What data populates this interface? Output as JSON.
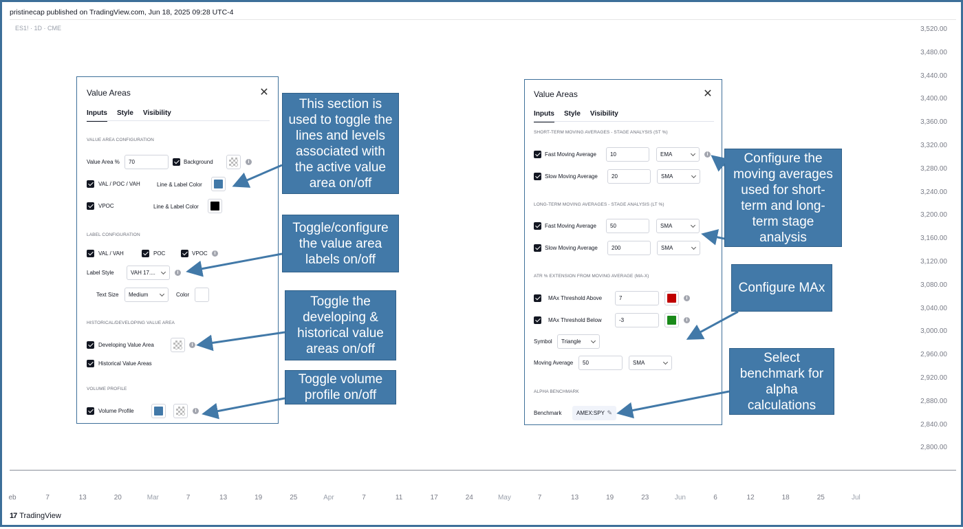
{
  "header": {
    "published": "pristinecap published on TradingView.com, Jun 18, 2025 09:28 UTC-4",
    "symbol": "ES1! · 1D · CME"
  },
  "price_axis": [
    "3,520.00",
    "3,480.00",
    "3,440.00",
    "3,400.00",
    "3,360.00",
    "3,320.00",
    "3,280.00",
    "3,240.00",
    "3,200.00",
    "3,160.00",
    "3,120.00",
    "3,080.00",
    "3,040.00",
    "3,000.00",
    "2,960.00",
    "2,920.00",
    "2,880.00",
    "2,840.00",
    "2,800.00"
  ],
  "date_axis": [
    {
      "label": "eb",
      "month": false
    },
    {
      "label": "7",
      "month": false
    },
    {
      "label": "13",
      "month": false
    },
    {
      "label": "20",
      "month": false
    },
    {
      "label": "Mar",
      "month": true
    },
    {
      "label": "7",
      "month": false
    },
    {
      "label": "13",
      "month": false
    },
    {
      "label": "19",
      "month": false
    },
    {
      "label": "25",
      "month": false
    },
    {
      "label": "Apr",
      "month": true
    },
    {
      "label": "7",
      "month": false
    },
    {
      "label": "11",
      "month": false
    },
    {
      "label": "17",
      "month": false
    },
    {
      "label": "24",
      "month": false
    },
    {
      "label": "May",
      "month": true
    },
    {
      "label": "7",
      "month": false
    },
    {
      "label": "13",
      "month": false
    },
    {
      "label": "19",
      "month": false
    },
    {
      "label": "23",
      "month": false
    },
    {
      "label": "Jun",
      "month": true
    },
    {
      "label": "6",
      "month": false
    },
    {
      "label": "12",
      "month": false
    },
    {
      "label": "18",
      "month": false
    },
    {
      "label": "25",
      "month": false
    },
    {
      "label": "Jul",
      "month": true
    }
  ],
  "footer": {
    "logo": "TradingView",
    "logo_mark": "17"
  },
  "left_dialog": {
    "title": "Value Areas",
    "tabs": [
      "Inputs",
      "Style",
      "Visibility"
    ],
    "sec_value_area": "Value Area Configuration",
    "value_area_label": "Value Area %",
    "value_area_value": "70",
    "background_label": "Background",
    "val_poc_vah_label": "VAL / POC / VAH",
    "line_label_color_1": "Line & Label Color",
    "vpoc_label": "VPOC",
    "line_label_color_2": "Line & Label Color",
    "sec_label": "Label Configuration",
    "cb_val_vah": "VAL / VAH",
    "cb_poc": "POC",
    "cb_vpoc": "VPOC",
    "label_style_label": "Label Style",
    "label_style_value": "VAH 17....",
    "text_size_label": "Text Size",
    "text_size_value": "Medium",
    "color_label": "Color",
    "sec_hist": "Historical/Developing Value Area",
    "developing_label": "Developing Value Area",
    "historical_label": "Historical Value Areas",
    "sec_volume": "Volume Profile",
    "volume_profile_label": "Volume Profile",
    "colors": {
      "line1": "#4279a8",
      "line2": "#000000",
      "volume": "#4279a8"
    }
  },
  "right_dialog": {
    "title": "Value Areas",
    "tabs": [
      "Inputs",
      "Style",
      "Visibility"
    ],
    "sec_st": "Short-Term Moving Averages - Stage Analysis (ST %)",
    "fast_ma_label": "Fast Moving Average",
    "st_fast_value": "10",
    "st_fast_type": "EMA",
    "slow_ma_label": "Slow Moving Average",
    "st_slow_value": "20",
    "st_slow_type": "SMA",
    "sec_lt": "Long-Term Moving Averages - Stage Analysis (LT %)",
    "lt_fast_label": "Fast Moving Average",
    "lt_fast_value": "50",
    "lt_fast_type": "SMA",
    "lt_slow_label": "Slow Moving Average",
    "lt_slow_value": "200",
    "lt_slow_type": "SMA",
    "sec_atr": "ATR % Extension from Moving Average (MA-X)",
    "max_above_label": "MAx Threshold Above",
    "max_above_value": "7",
    "max_below_label": "MAx Threshold Below",
    "max_below_value": "-3",
    "symbol_label": "Symbol",
    "symbol_value": "Triangle",
    "ma_label": "Moving Average",
    "ma_value": "50",
    "ma_type": "SMA",
    "sec_alpha": "Alpha Benchmark",
    "benchmark_label": "Benchmark",
    "benchmark_value": "AMEX:SPY",
    "colors": {
      "above": "#c00000",
      "below": "#1a8a1a"
    }
  },
  "callouts": {
    "c1": "This section is used to toggle the lines and levels associated with the active value area on/off",
    "c2": "Toggle/configure the value area labels on/off",
    "c3": "Toggle the developing & historical value areas on/off",
    "c4": "Toggle volume profile on/off",
    "c5": "Configure the moving averages used for short-term and long-term stage analysis",
    "c6": "Configure MAx",
    "c7": "Select benchmark for alpha calculations"
  }
}
